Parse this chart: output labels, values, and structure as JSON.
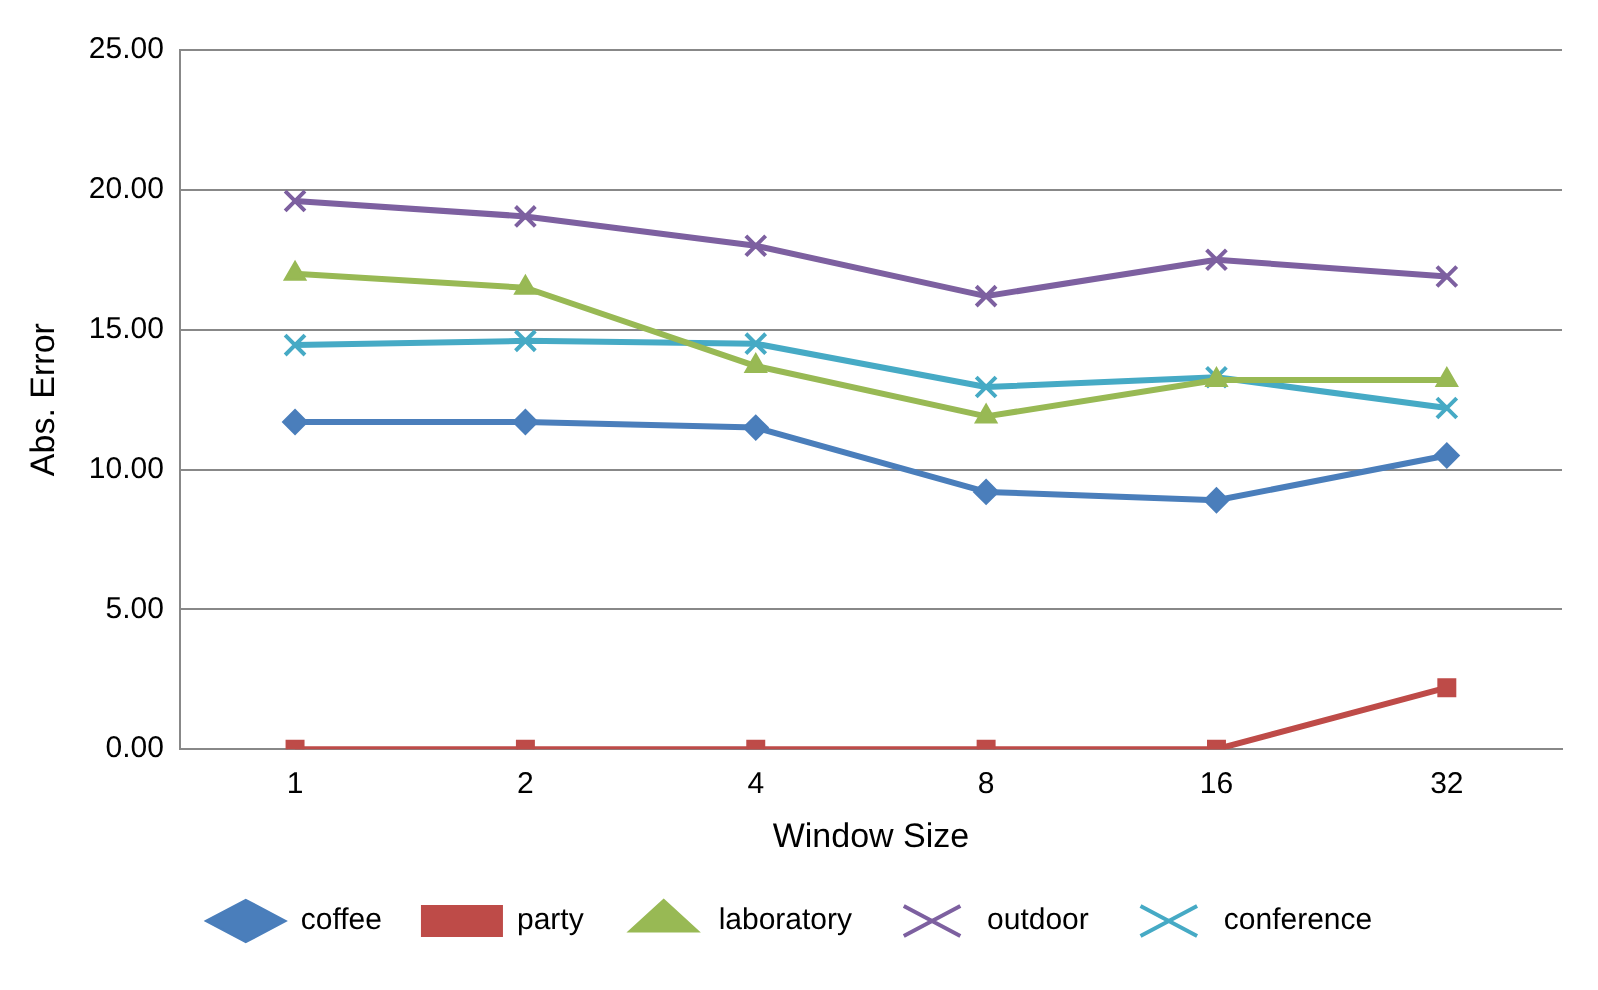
{
  "chart_data": {
    "type": "line",
    "xlabel": "Window Size",
    "ylabel": "Abs. Error",
    "categories": [
      "1",
      "2",
      "4",
      "8",
      "16",
      "32"
    ],
    "ylim": [
      0,
      25
    ],
    "yticks": [
      {
        "value": 0,
        "label": "0.00"
      },
      {
        "value": 5,
        "label": "5.00"
      },
      {
        "value": 10,
        "label": "10.00"
      },
      {
        "value": 15,
        "label": "15.00"
      },
      {
        "value": 20,
        "label": "20.00"
      },
      {
        "value": 25,
        "label": "25.00"
      }
    ],
    "grid": "y",
    "legend": "bottom",
    "line_style": "solid",
    "series": [
      {
        "name": "coffee",
        "color": "#4a7ebb",
        "marker": "diamond",
        "values": [
          11.7,
          11.7,
          11.5,
          9.2,
          8.9,
          10.5
        ]
      },
      {
        "name": "party",
        "color": "#be4b48",
        "marker": "square",
        "values": [
          0,
          0,
          0,
          0,
          0,
          2.2
        ]
      },
      {
        "name": "laboratory",
        "color": "#98b954",
        "marker": "triangle",
        "values": [
          17.0,
          16.5,
          13.7,
          11.9,
          13.2,
          13.2
        ]
      },
      {
        "name": "outdoor",
        "color": "#7d60a0",
        "marker": "cross",
        "values": [
          19.6,
          19.05,
          18.0,
          16.2,
          17.5,
          16.9
        ]
      },
      {
        "name": "conference",
        "color": "#46aac5",
        "marker": "cross",
        "values": [
          14.45,
          14.6,
          14.5,
          12.95,
          13.3,
          12.2
        ]
      }
    ]
  }
}
